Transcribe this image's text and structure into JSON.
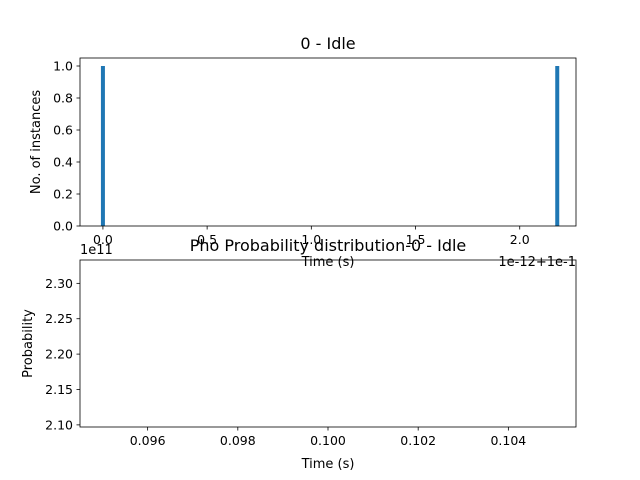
{
  "chart_data": [
    {
      "type": "bar",
      "title": "0 - Idle",
      "xlabel": "Time (s)",
      "ylabel": "No. of instances",
      "xlim": [
        -0.11,
        2.27
      ],
      "ylim": [
        0,
        1.05
      ],
      "x_offset_text": "1e-12+1e-1",
      "y_offset_text": "1e11",
      "xticks": [
        0.0,
        0.5,
        1.0,
        1.5,
        2.0
      ],
      "xtick_labels": [
        "0.0",
        "0.5",
        "1.0",
        "1.5",
        "2.0"
      ],
      "yticks": [
        0.0,
        0.2,
        0.4,
        0.6,
        0.8,
        1.0
      ],
      "ytick_labels": [
        "0.0",
        "0.2",
        "0.4",
        "0.6",
        "0.8",
        "1.0"
      ],
      "bars": [
        {
          "x": 0.0,
          "value": 1.0
        },
        {
          "x": 2.18,
          "value": 1.0
        }
      ],
      "bar_color": "#1f77b4"
    },
    {
      "type": "line",
      "title": "Pho Probability distribution-0 - Idle",
      "xlabel": "Time (s)",
      "ylabel": "Probability",
      "xlim": [
        0.0945,
        0.1055
      ],
      "ylim": [
        2.097,
        2.333
      ],
      "xticks": [
        0.096,
        0.098,
        0.1,
        0.102,
        0.104
      ],
      "xtick_labels": [
        "0.096",
        "0.098",
        "0.100",
        "0.102",
        "0.104"
      ],
      "yticks": [
        2.1,
        2.15,
        2.2,
        2.25,
        2.3
      ],
      "ytick_labels": [
        "2.10",
        "2.15",
        "2.20",
        "2.25",
        "2.30"
      ],
      "series": []
    }
  ]
}
